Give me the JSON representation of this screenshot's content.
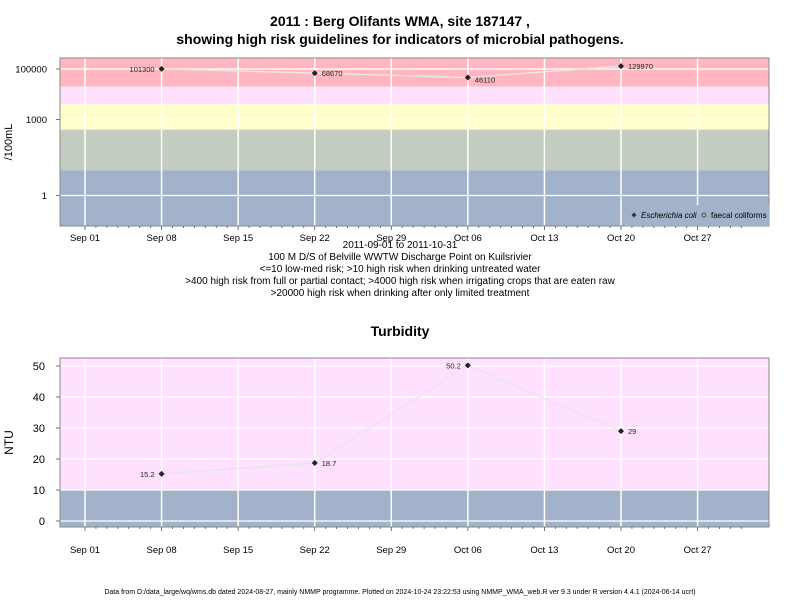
{
  "top": {
    "title_line1": "2011 : Berg Olifants WMA, site 187147 ,",
    "title_line2": "showing high risk guidelines for indicators of microbial pathogens.",
    "date_range": "2011-09-01 to 2011-10-31",
    "site_desc": "100 M D/S of Belville WWTW Discharge Point on Kuilsrivier",
    "notes": [
      "<=10 low-med risk; >10 high risk when drinking untreated water",
      ">400 high risk from full or partial contact; >4000 high risk when irrigating crops that are eaten raw",
      ">20000 high risk when drinking after only limited treatment"
    ],
    "legend": {
      "ecoli": "Escherichia coli",
      "fc": "faecal coliforms"
    }
  },
  "bottom": {
    "title": "Turbidity"
  },
  "footer": "Data from D:/data_large/wq/wms.db dated 2024-08-27, mainly NMMP programme. Plotted on 2024-10-24 23:22:53 using NMMP_WMA_web.R ver 9.3 under R version 4.4.1 (2024-06-14 ucrt)",
  "colors": {
    "red": "#ffb6c1",
    "pink": "#ffe0ff",
    "yellow": "#ffffcc",
    "green": "#c3cdc1",
    "blue": "#a3b2cb"
  },
  "chart_data": [
    {
      "type": "line",
      "ylabel": "/100mL",
      "yscale": "log",
      "xlabel": "",
      "x_ticks": [
        "Sep 01",
        "Sep 08",
        "Sep 15",
        "Sep 22",
        "Sep 29",
        "Oct 06",
        "Oct 13",
        "Oct 20",
        "Oct 27"
      ],
      "y_ticks": [
        "1",
        "1000",
        "100000"
      ],
      "series": [
        {
          "name": "Escherichia coli",
          "points": [
            {
              "x": "2011-09-08",
              "y": 101300,
              "label": "101300"
            },
            {
              "x": "2011-09-22",
              "y": 68670,
              "label": "68670"
            },
            {
              "x": "2011-10-06",
              "y": 46110,
              "label": "46110"
            },
            {
              "x": "2011-10-20",
              "y": 129970,
              "label": "129970"
            }
          ]
        }
      ]
    },
    {
      "type": "line",
      "title": "Turbidity",
      "ylabel": "NTU",
      "xlabel": "",
      "x_ticks": [
        "Sep 01",
        "Sep 08",
        "Sep 15",
        "Sep 22",
        "Sep 29",
        "Oct 06",
        "Oct 13",
        "Oct 20",
        "Oct 27"
      ],
      "y_ticks": [
        "0",
        "10",
        "20",
        "30",
        "40",
        "50"
      ],
      "series": [
        {
          "points": [
            {
              "x": "2011-09-08",
              "y": 15.2,
              "label": "15.2"
            },
            {
              "x": "2011-09-22",
              "y": 18.7,
              "label": "18.7"
            },
            {
              "x": "2011-10-06",
              "y": 50.2,
              "label": "50.2"
            },
            {
              "x": "2011-10-20",
              "y": 29,
              "label": "29"
            }
          ]
        }
      ]
    }
  ]
}
